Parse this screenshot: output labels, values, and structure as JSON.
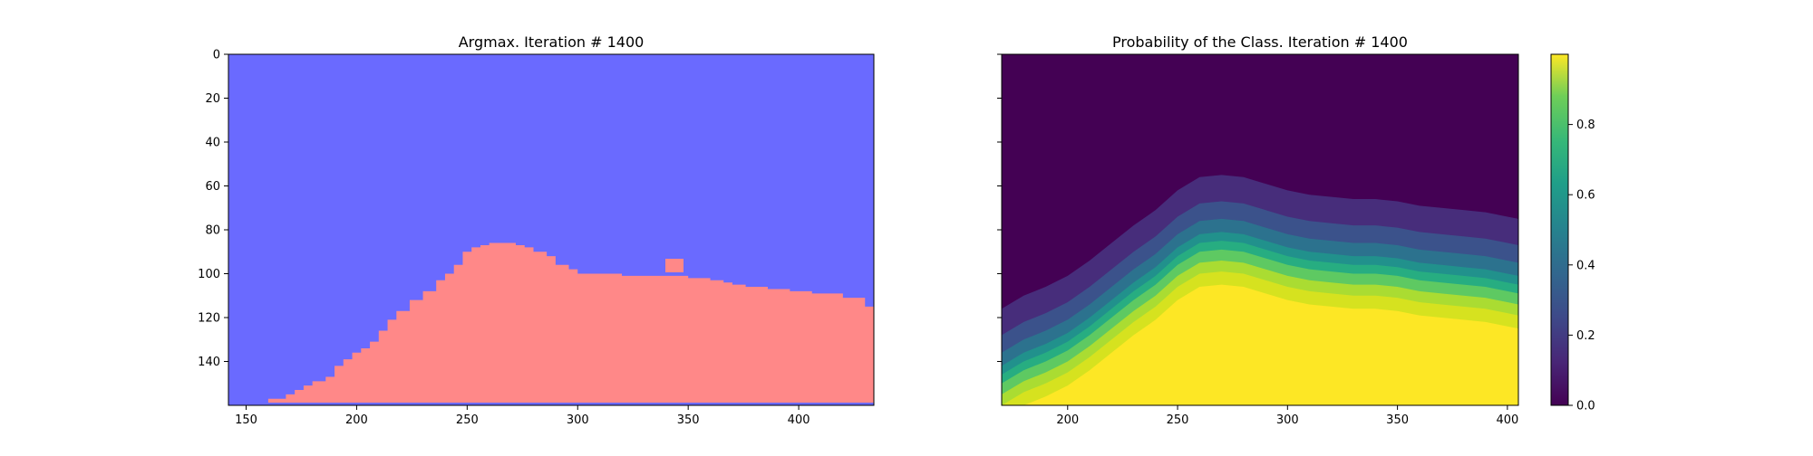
{
  "chart_data": [
    {
      "type": "heatmap",
      "title": "Argmax. Iteration # 1400",
      "xlabel": "",
      "ylabel": "",
      "xlim": [
        142,
        434
      ],
      "ylim": [
        160,
        0
      ],
      "x_ticks": [
        "150",
        "200",
        "250",
        "300",
        "350",
        "400"
      ],
      "y_ticks": [
        "0",
        "20",
        "40",
        "60",
        "80",
        "100",
        "120",
        "140"
      ],
      "classes": [
        {
          "value": 0,
          "color": "#6a6aff"
        },
        {
          "value": 1,
          "color": "#ff8888"
        }
      ],
      "class1_boundary": {
        "x": [
          142,
          150,
          160,
          168,
          172,
          176,
          180,
          186,
          190,
          194,
          198,
          202,
          206,
          210,
          214,
          218,
          224,
          230,
          236,
          240,
          244,
          248,
          252,
          256,
          260,
          264,
          268,
          272,
          276,
          280,
          286,
          290,
          296,
          300,
          310,
          320,
          330,
          340,
          350,
          360,
          366,
          370,
          376,
          386,
          396,
          406,
          420,
          430,
          434
        ],
        "y_top": [
          160,
          160,
          157,
          155,
          153,
          151,
          149,
          147,
          142,
          139,
          136,
          134,
          131,
          126,
          121,
          117,
          112,
          108,
          103,
          100,
          96,
          90,
          88,
          87,
          86,
          86,
          86,
          87,
          88,
          90,
          92,
          96,
          98,
          100,
          100,
          101,
          101,
          101,
          102,
          103,
          104,
          105,
          106,
          107,
          108,
          109,
          111,
          115,
          116
        ]
      }
    },
    {
      "type": "heatmap",
      "title": "Probability of the Class. Iteration # 1400",
      "xlabel": "",
      "ylabel": "",
      "xlim": [
        170,
        405
      ],
      "ylim": [
        160,
        0
      ],
      "x_ticks": [
        "200",
        "250",
        "300",
        "350",
        "400"
      ],
      "colorbar": {
        "colormap": "viridis",
        "range": [
          0.0,
          1.0
        ],
        "ticks": [
          "0.0",
          "0.2",
          "0.4",
          "0.6",
          "0.8"
        ]
      },
      "probability_front": {
        "x": [
          170,
          180,
          190,
          200,
          210,
          220,
          230,
          240,
          250,
          260,
          270,
          280,
          290,
          300,
          310,
          320,
          330,
          340,
          350,
          360,
          370,
          380,
          390,
          400,
          405
        ],
        "y_half": [
          150,
          144,
          140,
          135,
          128,
          120,
          112,
          105,
          96,
          90,
          89,
          90,
          93,
          96,
          98,
          99,
          100,
          100,
          101,
          103,
          104,
          105,
          106,
          108,
          109
        ]
      }
    }
  ]
}
